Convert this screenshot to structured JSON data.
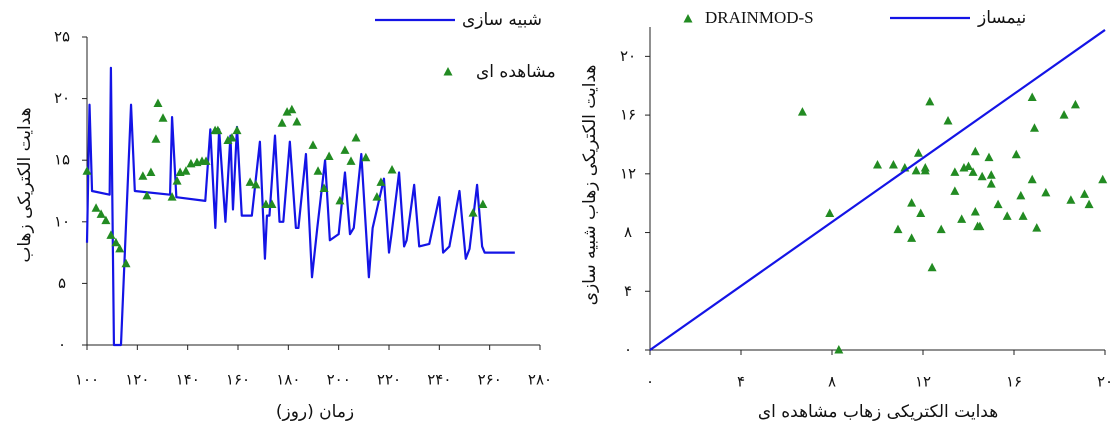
{
  "chart_data": [
    {
      "type": "line",
      "xlabel": "زمان (روز)",
      "ylabel": "هدایت الکتریکی زهاب",
      "xlim": [
        100,
        280
      ],
      "ylim": [
        0,
        25
      ],
      "xticks": [
        {
          "value": 100,
          "label": "۱۰۰"
        },
        {
          "value": 120,
          "label": "۱۲۰"
        },
        {
          "value": 140,
          "label": "۱۴۰"
        },
        {
          "value": 160,
          "label": "۱۶۰"
        },
        {
          "value": 180,
          "label": "۱۸۰"
        },
        {
          "value": 200,
          "label": "۲۰۰"
        },
        {
          "value": 220,
          "label": "۲۲۰"
        },
        {
          "value": 240,
          "label": "۲۴۰"
        },
        {
          "value": 260,
          "label": "۲۶۰"
        },
        {
          "value": 280,
          "label": "۲۸۰"
        }
      ],
      "yticks": [
        {
          "value": 0,
          "label": "۰"
        },
        {
          "value": 5,
          "label": "۵"
        },
        {
          "value": 10,
          "label": "۱۰"
        },
        {
          "value": 15,
          "label": "۱۵"
        },
        {
          "value": 20,
          "label": "۲۰"
        },
        {
          "value": 25,
          "label": "۲۵"
        }
      ],
      "series": [
        {
          "name": "شبیه سازی",
          "type": "line",
          "color": "#1414e6",
          "x": [
            100,
            101,
            102,
            109,
            109.5,
            110.7,
            113.5,
            117.5,
            119,
            133,
            133.8,
            135.5,
            147,
            149,
            151,
            152.5,
            155,
            157,
            158,
            159.6,
            161.5,
            165.5,
            168.7,
            170.7,
            171.5,
            172.5,
            174.7,
            176.5,
            178,
            180.6,
            183,
            184,
            187,
            189.4,
            191.5,
            194.6,
            196.5,
            200,
            202.5,
            204.5,
            206,
            209,
            212,
            213.5,
            218,
            220,
            221,
            224,
            226,
            227,
            230,
            232,
            236,
            240,
            241.5,
            244,
            248,
            250.5,
            252,
            255,
            257,
            258,
            270
          ],
          "values": [
            8.3,
            19.5,
            12.5,
            12.2,
            22.5,
            0,
            0,
            19.5,
            12.5,
            12.2,
            18.5,
            12,
            11.7,
            17.5,
            9.5,
            17.5,
            10,
            17,
            11,
            17.7,
            10.5,
            10.5,
            16.5,
            7,
            10.5,
            10.5,
            17,
            10,
            10,
            16.5,
            9.5,
            9.5,
            15.5,
            5.5,
            9.5,
            15,
            8.5,
            9,
            14,
            9,
            9.5,
            15.5,
            5.5,
            9.5,
            13.5,
            7.5,
            9,
            14,
            8,
            8.5,
            13,
            8,
            8.2,
            12,
            7.5,
            8,
            12.5,
            7,
            7.8,
            13,
            8,
            7.5,
            7.5
          ]
        },
        {
          "name": "مشاهده ای",
          "type": "scatter",
          "color": "#228b22",
          "x": [
            100,
            103.6,
            105.6,
            107.5,
            109.5,
            111.5,
            113,
            115.5,
            122.2,
            123.8,
            125.4,
            127.4,
            128.2,
            130.2,
            133.8,
            135.8,
            137,
            139.3,
            141.3,
            143.7,
            145.7,
            147.3,
            150.9,
            152,
            156,
            157.6,
            159.6,
            164.8,
            167.1,
            171.1,
            173.5,
            177.5,
            179.5,
            181.4,
            183.4,
            189.8,
            191.8,
            194.2,
            196.2,
            200.5,
            202.5,
            204.9,
            206.9,
            210.8,
            215.2,
            216.8,
            221.2,
            253.4,
            257.3
          ],
          "values": [
            14.1,
            11.1,
            10.6,
            10.1,
            8.9,
            8.3,
            7.8,
            6.6,
            13.7,
            12.1,
            14,
            16.7,
            19.6,
            18.4,
            12,
            13.3,
            14,
            14.1,
            14.7,
            14.8,
            14.9,
            14.9,
            17.4,
            17.4,
            16.6,
            16.8,
            17.4,
            13.2,
            13,
            11.4,
            11.4,
            18,
            18.9,
            19.1,
            18.1,
            16.2,
            14.1,
            12.7,
            15.3,
            11.7,
            15.8,
            14.9,
            16.8,
            15.2,
            12,
            13.2,
            14.2,
            10.7,
            11.4
          ]
        }
      ]
    },
    {
      "type": "scatter",
      "xlabel": "هدایت الکتریکی زهاب مشاهده ای",
      "ylabel": "هدایت الکتریکی زهاب شبیه سازی",
      "xlim": [
        0,
        20
      ],
      "ylim": [
        0,
        22
      ],
      "xticks": [
        {
          "value": 0,
          "label": "۰"
        },
        {
          "value": 4,
          "label": "۴"
        },
        {
          "value": 8,
          "label": "۸"
        },
        {
          "value": 12,
          "label": "۱۲"
        },
        {
          "value": 16,
          "label": "۱۶"
        },
        {
          "value": 20,
          "label": "۲۰"
        }
      ],
      "yticks": [
        {
          "value": 0,
          "label": "۰"
        },
        {
          "value": 4,
          "label": "۴"
        },
        {
          "value": 8,
          "label": "۸"
        },
        {
          "value": 12,
          "label": "۱۲"
        },
        {
          "value": 16,
          "label": "۱۶"
        },
        {
          "value": 20,
          "label": "۲۰"
        }
      ],
      "series": [
        {
          "name": "DRAINMOD-S",
          "type": "scatter",
          "color": "#228b22",
          "x": [
            6.7,
            7.9,
            8.3,
            10,
            10.7,
            11.2,
            11.7,
            11.8,
            10.9,
            11.5,
            11.5,
            11.9,
            12.1,
            12.1,
            12.3,
            12.4,
            12.8,
            13.1,
            13.4,
            13.4,
            13.7,
            13.8,
            14,
            14.2,
            14.3,
            14.3,
            14.4,
            14.5,
            14.6,
            14.9,
            15,
            15,
            15.3,
            15.7,
            16.1,
            16.3,
            16.4,
            16.8,
            16.8,
            16.9,
            17,
            17.4,
            18.2,
            18.5,
            18.7,
            19.1,
            19.3,
            19.9
          ],
          "values": [
            16.2,
            9.3,
            0,
            12.6,
            12.6,
            12.4,
            12.2,
            13.4,
            8.2,
            10,
            7.6,
            9.3,
            12.2,
            12.4,
            16.9,
            5.6,
            8.2,
            15.6,
            10.8,
            12.1,
            8.9,
            12.4,
            12.5,
            12.1,
            13.5,
            9.4,
            8.4,
            8.4,
            11.8,
            13.1,
            11.9,
            11.3,
            9.9,
            9.1,
            13.3,
            10.5,
            9.1,
            11.6,
            17.2,
            15.1,
            8.3,
            10.7,
            16,
            10.2,
            16.7,
            10.6,
            9.9,
            11.6
          ]
        },
        {
          "name": "نیمساز",
          "type": "line",
          "color": "#1414e6",
          "x": [
            0,
            20
          ],
          "values": [
            0,
            21.8
          ]
        }
      ]
    }
  ]
}
